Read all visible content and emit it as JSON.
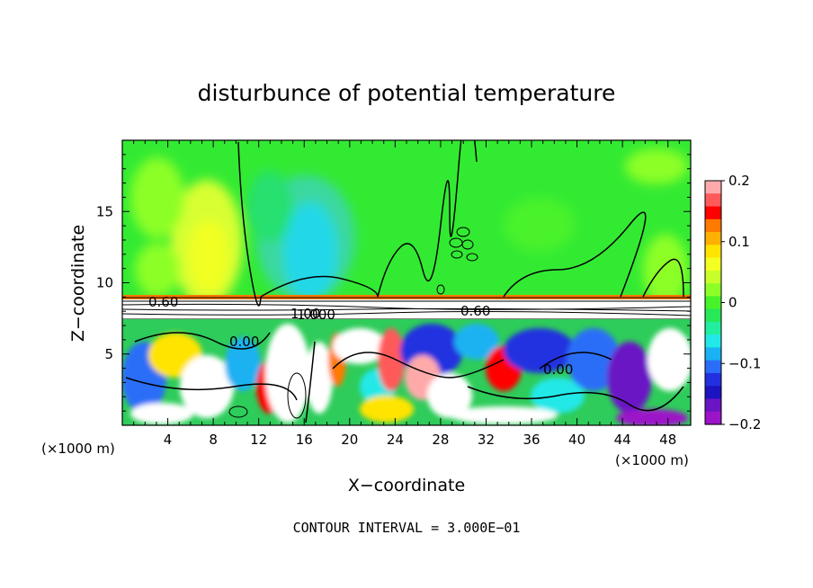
{
  "chart_data": {
    "type": "heatmap",
    "title": "disturbunce of potential temperature",
    "xlabel": "X−coordinate",
    "ylabel": "Z−coordinate",
    "x_unit": "(×1000 m)",
    "z_unit": "(×1000 m)",
    "xlim": [
      0,
      50
    ],
    "ylim": [
      0,
      20
    ],
    "x_ticks": [
      4,
      8,
      12,
      16,
      20,
      24,
      28,
      32,
      36,
      40,
      44,
      48
    ],
    "x_tick_labels": [
      "4",
      "8",
      "12",
      "16",
      "20",
      "24",
      "28",
      "32",
      "36",
      "40",
      "44",
      "48"
    ],
    "y_ticks": [
      5,
      10,
      15
    ],
    "y_tick_labels": [
      "5",
      "10",
      "15"
    ],
    "colorbar": {
      "min": -0.2,
      "max": 0.2,
      "ticks": [
        0.2,
        0.1,
        0,
        -0.1,
        -0.2
      ],
      "tick_labels": [
        "0.2",
        "0.1",
        "0",
        "−0.1",
        "−0.2"
      ],
      "colors": [
        "#ffaaaa",
        "#ff5a5a",
        "#ff0000",
        "#ff7a00",
        "#ffb000",
        "#ffe400",
        "#f4ff22",
        "#c8ff2a",
        "#8cff28",
        "#48f22a",
        "#26e858",
        "#22eea0",
        "#22e8e8",
        "#1ab2f2",
        "#2a6ef8",
        "#2230e0",
        "#1c14c0",
        "#6a14c4",
        "#9c14c8"
      ]
    },
    "contour_labels": [
      "0.60",
      "1.00",
      "1.000",
      "0.60",
      "0.00",
      "0.00"
    ],
    "contour_interval_text": "CONTOUR INTERVAL = 3.000E−01",
    "fields": {
      "upper_layer": "weak disturbance, mostly 0 to +0.05",
      "lower_layer": "turbulent, roughly -0.2 to +0.2"
    }
  }
}
